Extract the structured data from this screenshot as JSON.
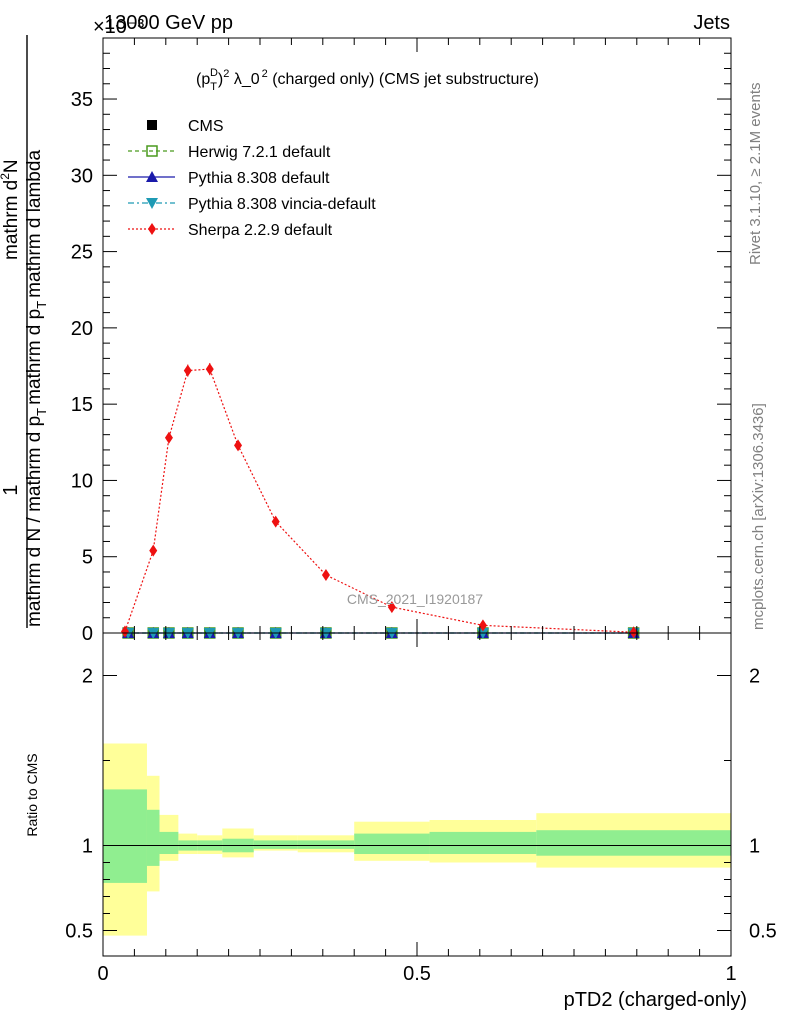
{
  "header": {
    "energy_label": "13000 GeV pp",
    "process_label": "Jets",
    "exponent_label": "×10⁻³",
    "side_rivet": "Rivet 3.1.10, ≥ 2.1M events",
    "side_mcplots": "mcplots.cern.ch [arXiv:1306.3436]",
    "watermark": "CMS_2021_I1920187"
  },
  "chart_data": [
    {
      "type": "line",
      "title": "(p_T^D)^2 λ_0^2 (charged only) (CMS jet substructure)",
      "title_parts": {
        "p": "(p",
        "sub": "T",
        "sup": "D",
        "close": ")",
        "sq": "2",
        "mid": " λ_0",
        "sq2": "2",
        "rest": " (charged only) (CMS jet substructure)"
      },
      "ylabel_top": "1",
      "ylabel_num": "mathrm d²N",
      "ylabel_num_text": "mathrm d",
      "ylabel_num_sup": "2",
      "ylabel_num_end": "N",
      "ylabel_den1": "mathrm d N / mathrm d p",
      "ylabel_den1_sub": "T",
      "ylabel_den2": "mathrm d p",
      "ylabel_den2_sub": "T",
      "ylabel_den2_end": "mathrm d lambda",
      "y_scale_exponent": -3,
      "xlim": [
        0,
        1
      ],
      "ylim": [
        0,
        39
      ],
      "yticks": [
        0,
        5,
        10,
        15,
        20,
        25,
        30,
        35
      ],
      "ytick_labels": [
        "0",
        "5",
        "10",
        "15",
        "20",
        "25",
        "30",
        "35"
      ],
      "legend_position": "top-left",
      "series": [
        {
          "name": "CMS",
          "color": "#000000",
          "marker": "square",
          "line": "none",
          "x": [
            0.04,
            0.08,
            0.105,
            0.135,
            0.17,
            0.215,
            0.275,
            0.355,
            0.46,
            0.605,
            0.845
          ],
          "values": [
            0,
            0,
            0,
            0,
            0,
            0,
            0,
            0,
            0,
            0,
            0
          ]
        },
        {
          "name": "Herwig 7.2.1 default",
          "color": "#4a9a1e",
          "marker": "open-square",
          "line": "dashed",
          "x": [
            0.04,
            0.08,
            0.105,
            0.135,
            0.17,
            0.215,
            0.275,
            0.355,
            0.46,
            0.605,
            0.845
          ],
          "values": [
            0,
            0,
            0,
            0,
            0,
            0,
            0,
            0,
            0,
            0,
            0
          ]
        },
        {
          "name": "Pythia 8.308 default",
          "color": "#1a1aaa",
          "marker": "triangle-up",
          "line": "solid",
          "x": [
            0.04,
            0.08,
            0.105,
            0.135,
            0.17,
            0.215,
            0.275,
            0.355,
            0.46,
            0.605,
            0.845
          ],
          "values": [
            0,
            0,
            0,
            0,
            0,
            0,
            0,
            0,
            0,
            0,
            0
          ]
        },
        {
          "name": "Pythia 8.308 vincia-default",
          "color": "#1e9ab4",
          "marker": "triangle-down",
          "line": "dashdot",
          "x": [
            0.04,
            0.08,
            0.105,
            0.135,
            0.17,
            0.215,
            0.275,
            0.355,
            0.46,
            0.605,
            0.845
          ],
          "values": [
            0,
            0,
            0,
            0,
            0,
            0,
            0,
            0,
            0,
            0,
            0
          ]
        },
        {
          "name": "Sherpa 2.2.9 default",
          "color": "#ee1111",
          "marker": "diamond",
          "line": "dotted",
          "x": [
            0.035,
            0.08,
            0.105,
            0.135,
            0.17,
            0.215,
            0.275,
            0.355,
            0.46,
            0.605,
            0.845
          ],
          "values": [
            0.1,
            5.4,
            12.8,
            17.2,
            17.3,
            12.3,
            7.3,
            3.8,
            1.7,
            0.5,
            0.05
          ],
          "errors": [
            0.1,
            0.3,
            0.35,
            0.4,
            0.4,
            0.3,
            0.25,
            0.2,
            0.15,
            0.1,
            0.05
          ]
        }
      ]
    },
    {
      "type": "area",
      "ylabel": "Ratio to CMS",
      "xlabel": "pTD2 (charged-only)",
      "xlim": [
        0,
        1
      ],
      "ylim": [
        0.35,
        2.25
      ],
      "xticks": [
        0,
        0.5,
        1
      ],
      "xtick_labels": [
        "0",
        "0.5",
        "1"
      ],
      "yticks": [
        0.5,
        1,
        2
      ],
      "ytick_labels": [
        "0.5",
        "1",
        "2"
      ],
      "reference_line": 1,
      "bands": {
        "green_color": "#90ee90",
        "yellow_color": "#ffff99",
        "bins": [
          {
            "x0": 0.0,
            "x1": 0.07,
            "green": [
              0.78,
              1.33
            ],
            "yellow": [
              0.47,
              1.6
            ]
          },
          {
            "x0": 0.07,
            "x1": 0.09,
            "green": [
              0.88,
              1.21
            ],
            "yellow": [
              0.73,
              1.41
            ]
          },
          {
            "x0": 0.09,
            "x1": 0.12,
            "green": [
              0.95,
              1.08
            ],
            "yellow": [
              0.91,
              1.18
            ]
          },
          {
            "x0": 0.12,
            "x1": 0.15,
            "green": [
              0.97,
              1.03
            ],
            "yellow": [
              0.95,
              1.07
            ]
          },
          {
            "x0": 0.15,
            "x1": 0.19,
            "green": [
              0.97,
              1.03
            ],
            "yellow": [
              0.95,
              1.06
            ]
          },
          {
            "x0": 0.19,
            "x1": 0.24,
            "green": [
              0.96,
              1.04
            ],
            "yellow": [
              0.93,
              1.1
            ]
          },
          {
            "x0": 0.24,
            "x1": 0.31,
            "green": [
              0.98,
              1.03
            ],
            "yellow": [
              0.97,
              1.06
            ]
          },
          {
            "x0": 0.31,
            "x1": 0.4,
            "green": [
              0.98,
              1.03
            ],
            "yellow": [
              0.96,
              1.06
            ]
          },
          {
            "x0": 0.4,
            "x1": 0.52,
            "green": [
              0.95,
              1.07
            ],
            "yellow": [
              0.91,
              1.14
            ]
          },
          {
            "x0": 0.52,
            "x1": 0.69,
            "green": [
              0.95,
              1.08
            ],
            "yellow": [
              0.9,
              1.15
            ]
          },
          {
            "x0": 0.69,
            "x1": 1.0,
            "green": [
              0.94,
              1.09
            ],
            "yellow": [
              0.87,
              1.19
            ]
          }
        ]
      }
    }
  ]
}
